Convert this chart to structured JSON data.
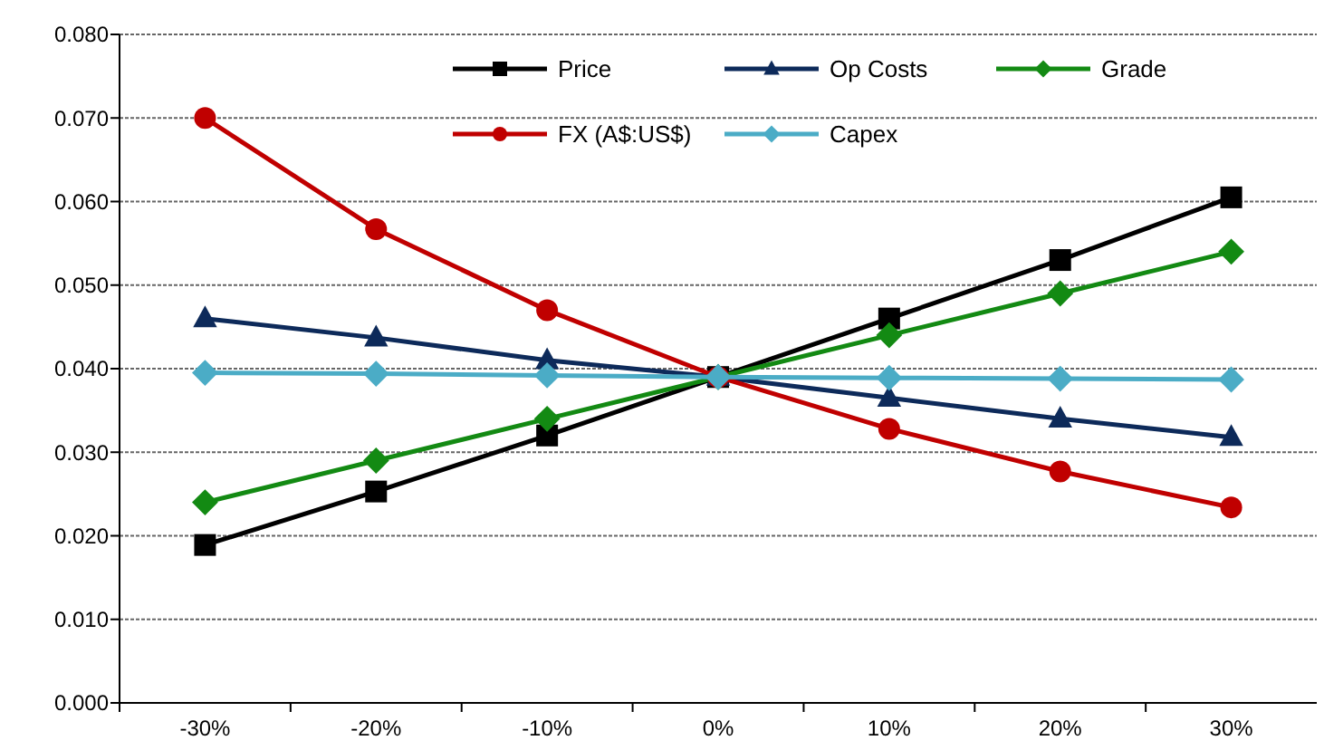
{
  "chart_data": {
    "type": "line",
    "categories": [
      "-30%",
      "-20%",
      "-10%",
      "0%",
      "10%",
      "20%",
      "30%"
    ],
    "ylim": [
      0,
      0.08
    ],
    "yticks": [
      {
        "value": 0,
        "label": "0.000"
      },
      {
        "value": 0.01,
        "label": "0.010"
      },
      {
        "value": 0.02,
        "label": "0.020"
      },
      {
        "value": 0.03,
        "label": "0.030"
      },
      {
        "value": 0.04,
        "label": "0.040"
      },
      {
        "value": 0.05,
        "label": "0.050"
      },
      {
        "value": 0.06,
        "label": "0.060"
      },
      {
        "value": 0.07,
        "label": "0.070"
      },
      {
        "value": 0.08,
        "label": "0.080"
      }
    ],
    "grid": "y",
    "legend": "top",
    "series": [
      {
        "name": "Price",
        "color": "#000000",
        "marker": "square",
        "values": [
          0.0189,
          0.0253,
          0.032,
          0.039,
          0.046,
          0.053,
          0.0605
        ]
      },
      {
        "name": "Op Costs",
        "color": "#0d2a5a",
        "marker": "triangle",
        "values": [
          0.046,
          0.0437,
          0.041,
          0.039,
          0.0365,
          0.034,
          0.0318
        ]
      },
      {
        "name": "Grade",
        "color": "#138a13",
        "marker": "diamond",
        "values": [
          0.024,
          0.029,
          0.034,
          0.039,
          0.044,
          0.049,
          0.054
        ]
      },
      {
        "name": "FX (A$:US$)",
        "color": "#c00000",
        "marker": "circle",
        "values": [
          0.07,
          0.0567,
          0.047,
          0.039,
          0.0328,
          0.0277,
          0.0234
        ]
      },
      {
        "name": "Capex",
        "color": "#4bacc6",
        "marker": "diamond",
        "values": [
          0.0395,
          0.0394,
          0.0392,
          0.039,
          0.0389,
          0.0388,
          0.0387
        ]
      }
    ]
  }
}
